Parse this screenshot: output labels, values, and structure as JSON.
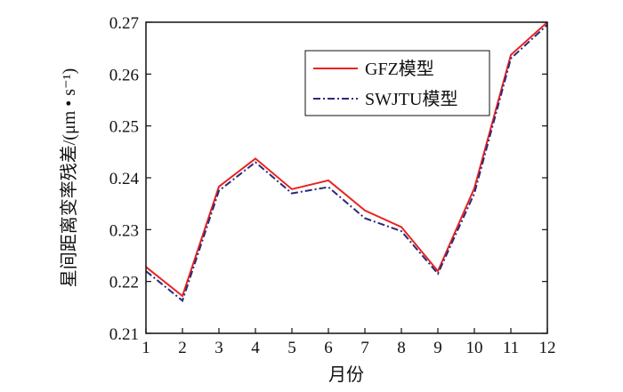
{
  "chart_data": {
    "type": "line",
    "title": "",
    "xlabel": "月份",
    "ylabel": "星间距离变率残差/(μm • s⁻¹)",
    "x": [
      1,
      2,
      3,
      4,
      5,
      6,
      7,
      8,
      9,
      10,
      11,
      12
    ],
    "xticks": [
      "1",
      "2",
      "3",
      "4",
      "5",
      "6",
      "7",
      "8",
      "9",
      "10",
      "11",
      "12"
    ],
    "ylim": [
      0.21,
      0.27
    ],
    "yticks": [
      "0.21",
      "0.22",
      "0.23",
      "0.24",
      "0.25",
      "0.26",
      "0.27"
    ],
    "grid": false,
    "legend_position": "top-right",
    "series": [
      {
        "name": "GFZ模型",
        "color": "#e8231f",
        "style": "solid",
        "values": [
          0.2228,
          0.2172,
          0.2383,
          0.2437,
          0.2378,
          0.2395,
          0.2337,
          0.2305,
          0.222,
          0.238,
          0.2637,
          0.27
        ]
      },
      {
        "name": "SWJTU模型",
        "color": "#2b2a78",
        "style": "dashdot",
        "values": [
          0.222,
          0.2163,
          0.2375,
          0.243,
          0.237,
          0.2382,
          0.2322,
          0.2297,
          0.2215,
          0.237,
          0.263,
          0.2695
        ]
      }
    ]
  }
}
